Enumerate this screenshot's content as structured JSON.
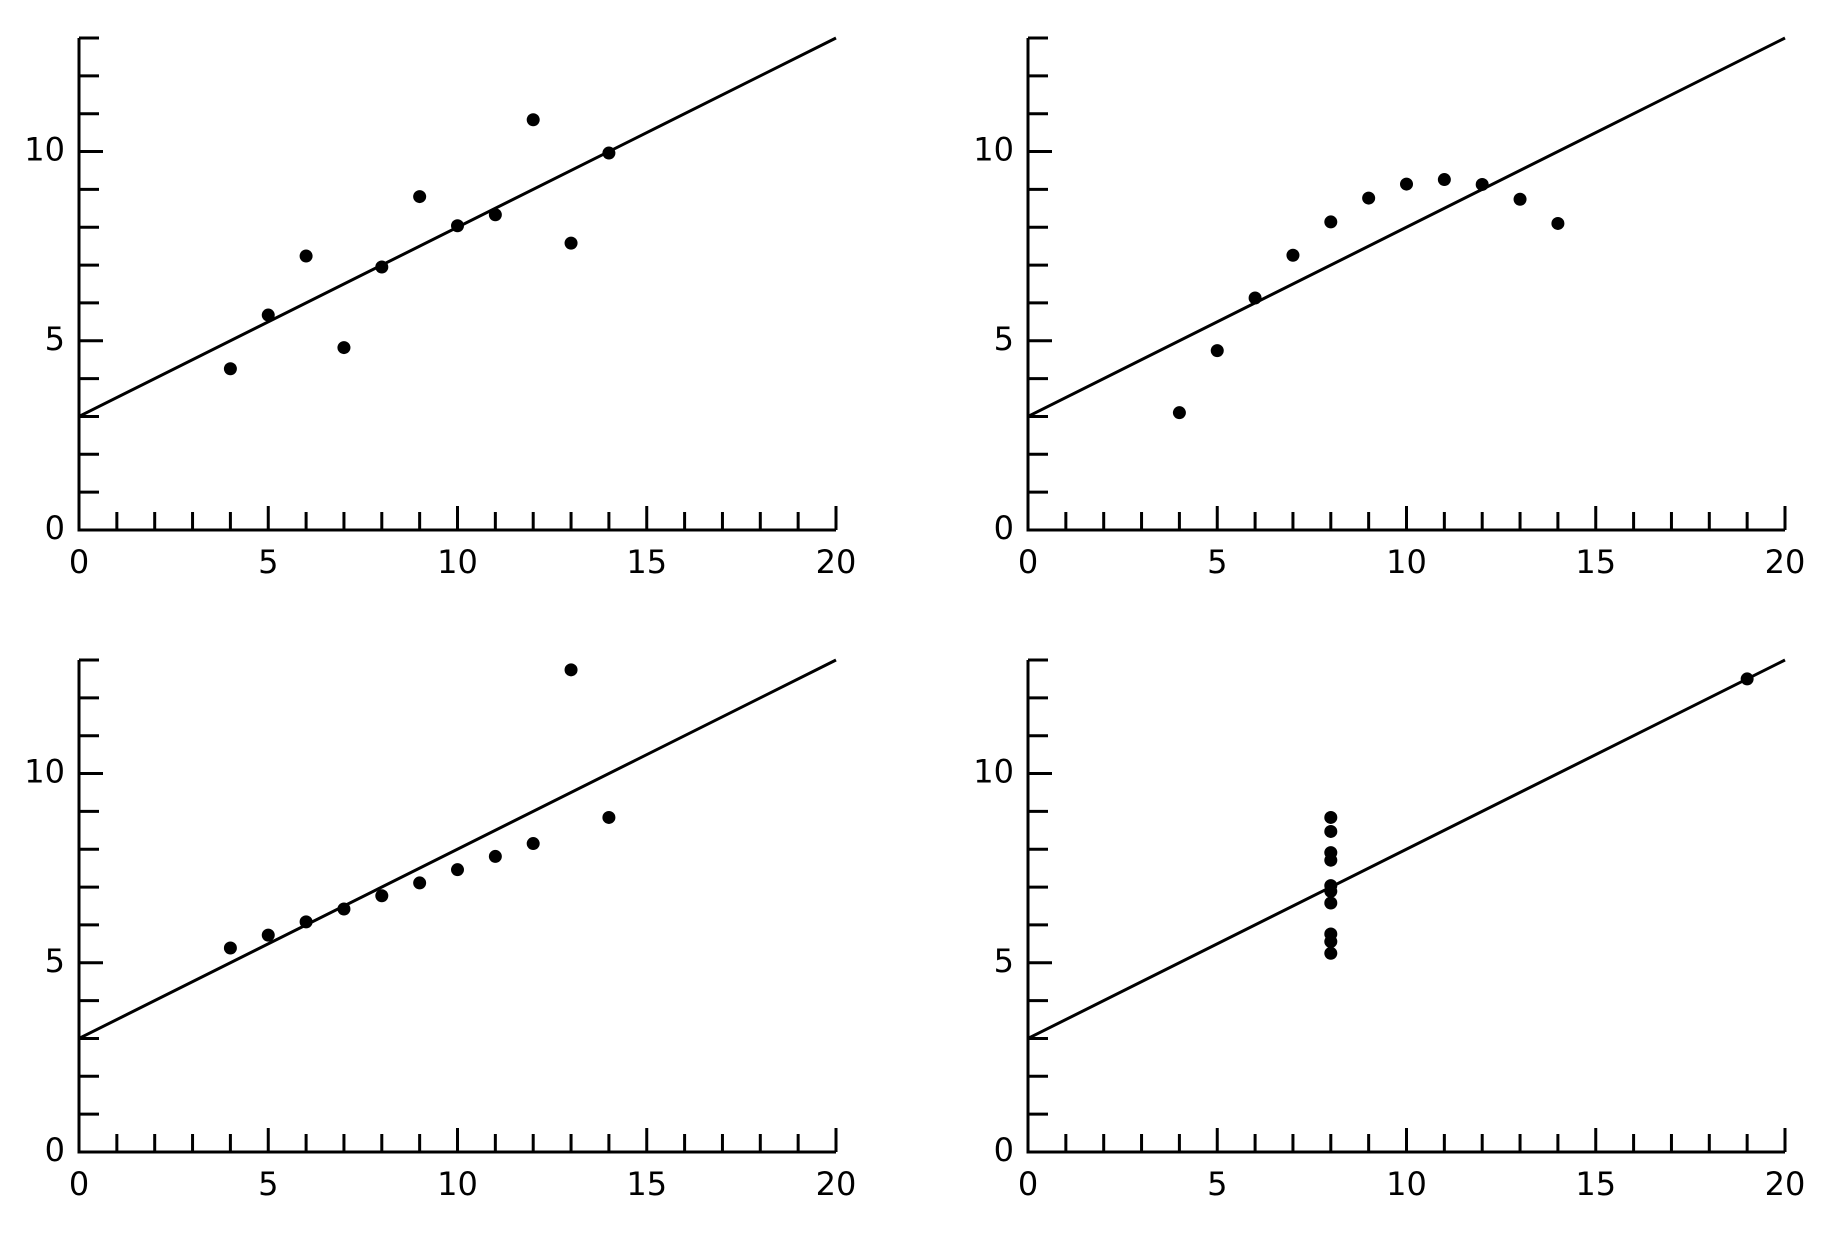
{
  "chart_data": [
    {
      "type": "scatter",
      "x": [
        10,
        8,
        13,
        9,
        11,
        14,
        6,
        4,
        12,
        7,
        5
      ],
      "values": [
        8.04,
        6.95,
        7.58,
        8.81,
        8.33,
        9.96,
        7.24,
        4.26,
        10.84,
        4.82,
        5.68
      ],
      "fit": {
        "x": [
          0,
          20
        ],
        "values": [
          3,
          13
        ]
      },
      "xlim": [
        0,
        20
      ],
      "ylim": [
        0,
        13
      ],
      "xticks": [
        0,
        5,
        10,
        15,
        20
      ],
      "yticks": [
        0,
        5,
        10
      ],
      "xminorticks": [
        1,
        2,
        3,
        4,
        6,
        7,
        8,
        9,
        11,
        12,
        13,
        14,
        16,
        17,
        18,
        19
      ],
      "yminorticks": [
        1,
        2,
        3,
        4,
        6,
        7,
        8,
        9,
        11,
        12,
        13
      ],
      "color": "#000000"
    },
    {
      "type": "scatter",
      "x": [
        10,
        8,
        13,
        9,
        11,
        14,
        6,
        4,
        12,
        7,
        5
      ],
      "values": [
        9.14,
        8.14,
        8.74,
        8.77,
        9.26,
        8.1,
        6.13,
        3.1,
        9.13,
        7.26,
        4.74
      ],
      "fit": {
        "x": [
          0,
          20
        ],
        "values": [
          3,
          13
        ]
      },
      "xlim": [
        0,
        20
      ],
      "ylim": [
        0,
        13
      ],
      "xticks": [
        0,
        5,
        10,
        15,
        20
      ],
      "yticks": [
        0,
        5,
        10
      ],
      "xminorticks": [
        1,
        2,
        3,
        4,
        6,
        7,
        8,
        9,
        11,
        12,
        13,
        14,
        16,
        17,
        18,
        19
      ],
      "yminorticks": [
        1,
        2,
        3,
        4,
        6,
        7,
        8,
        9,
        11,
        12,
        13
      ],
      "color": "#000000"
    },
    {
      "type": "scatter",
      "x": [
        10,
        8,
        13,
        9,
        11,
        14,
        6,
        4,
        12,
        7,
        5
      ],
      "values": [
        7.46,
        6.77,
        12.74,
        7.11,
        7.81,
        8.84,
        6.08,
        5.39,
        8.15,
        6.42,
        5.73
      ],
      "fit": {
        "x": [
          0,
          20
        ],
        "values": [
          3,
          13
        ]
      },
      "xlim": [
        0,
        20
      ],
      "ylim": [
        0,
        13
      ],
      "xticks": [
        0,
        5,
        10,
        15,
        20
      ],
      "yticks": [
        0,
        5,
        10
      ],
      "xminorticks": [
        1,
        2,
        3,
        4,
        6,
        7,
        8,
        9,
        11,
        12,
        13,
        14,
        16,
        17,
        18,
        19
      ],
      "yminorticks": [
        1,
        2,
        3,
        4,
        6,
        7,
        8,
        9,
        11,
        12,
        13
      ],
      "color": "#000000"
    },
    {
      "type": "scatter",
      "x": [
        8,
        8,
        8,
        8,
        8,
        8,
        8,
        19,
        8,
        8,
        8
      ],
      "values": [
        6.58,
        5.76,
        7.71,
        8.84,
        8.47,
        7.04,
        5.25,
        12.5,
        5.56,
        7.91,
        6.89
      ],
      "fit": {
        "x": [
          0,
          20
        ],
        "values": [
          3,
          13
        ]
      },
      "xlim": [
        0,
        20
      ],
      "ylim": [
        0,
        13
      ],
      "xticks": [
        0,
        5,
        10,
        15,
        20
      ],
      "yticks": [
        0,
        5,
        10
      ],
      "xminorticks": [
        1,
        2,
        3,
        4,
        6,
        7,
        8,
        9,
        11,
        12,
        13,
        14,
        16,
        17,
        18,
        19
      ],
      "yminorticks": [
        1,
        2,
        3,
        4,
        6,
        7,
        8,
        9,
        11,
        12,
        13
      ],
      "color": "#000000"
    }
  ]
}
